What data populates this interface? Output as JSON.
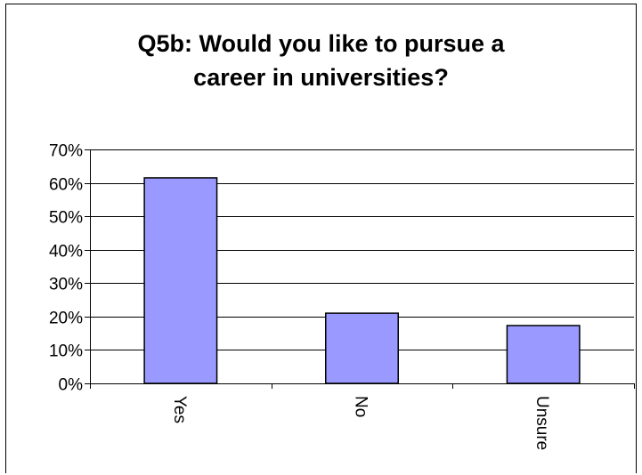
{
  "chart_data": {
    "type": "bar",
    "title_lines": [
      "Q5b: Would you like to pursue a",
      "career in universities?"
    ],
    "categories": [
      "Yes",
      "No",
      "Unsure"
    ],
    "values": [
      0.615,
      0.21,
      0.173
    ],
    "ylim": [
      0,
      0.7
    ],
    "yticks": [
      "0%",
      "10%",
      "20%",
      "30%",
      "40%",
      "50%",
      "60%",
      "70%"
    ],
    "grid": true,
    "bar_color": "#9999ff",
    "bar_edge_color": "#000000",
    "grid_color": "#000000"
  }
}
